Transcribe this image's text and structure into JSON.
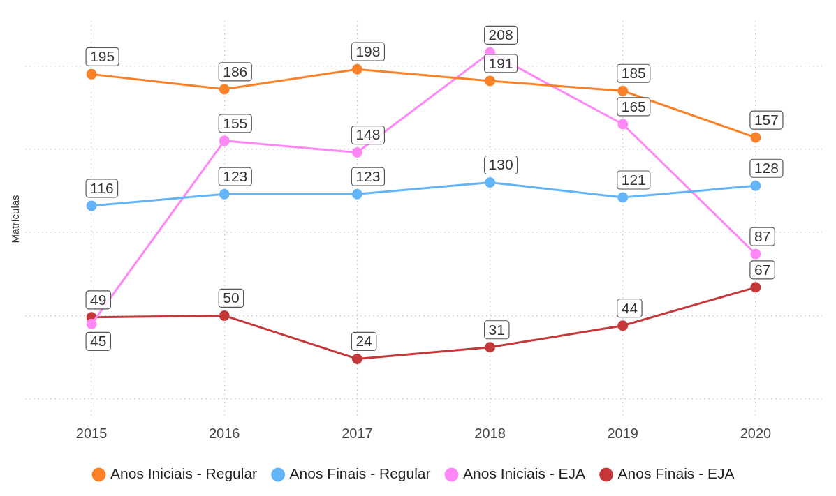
{
  "chart_data": {
    "type": "line",
    "ylabel": "Matrículas",
    "categories": [
      "2015",
      "2016",
      "2017",
      "2018",
      "2019",
      "2020"
    ],
    "series": [
      {
        "name": "Anos Iniciais - Regular",
        "color": "#fb8128",
        "values": [
          195,
          186,
          198,
          191,
          185,
          157
        ]
      },
      {
        "name": "Anos Finais - Regular",
        "color": "#64b4f8",
        "values": [
          116,
          123,
          123,
          130,
          121,
          128
        ]
      },
      {
        "name": "Anos Iniciais - EJA",
        "color": "#ff88f6",
        "values": [
          45,
          155,
          148,
          208,
          165,
          87
        ]
      },
      {
        "name": "Anos Finais - EJA",
        "color": "#c4383a",
        "values": [
          49,
          50,
          24,
          31,
          44,
          67
        ]
      }
    ],
    "ylim": [
      -11,
      227
    ],
    "yticks": [
      {
        "value": 0,
        "label": null
      },
      {
        "value": 50,
        "label": null
      },
      {
        "value": 100,
        "label": null
      },
      {
        "value": 150,
        "label": null
      },
      {
        "value": 200,
        "label": null
      }
    ],
    "tick_labels": "x",
    "grid": true,
    "legend": "bottom",
    "marker": "circle",
    "line_style": "solid",
    "data_labels": true
  }
}
